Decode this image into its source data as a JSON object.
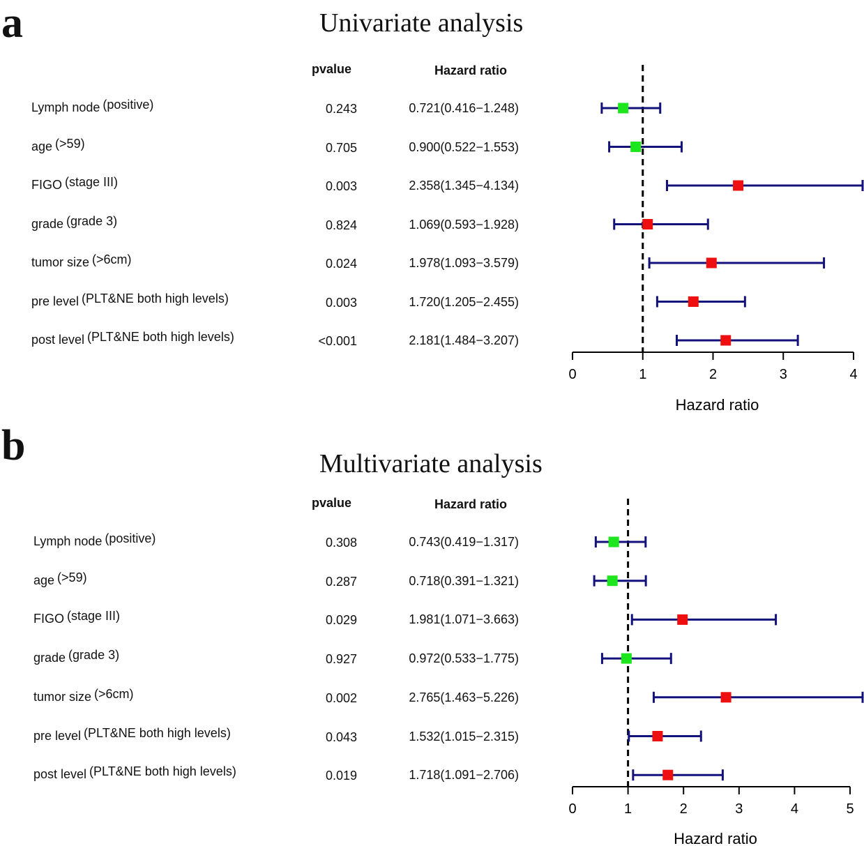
{
  "panels": [
    {
      "letter": "a",
      "title": "Univariate analysis",
      "pvalue_header": "pvalue",
      "hr_header": "Hazard ratio",
      "rows": [
        {
          "name": "Lymph node",
          "level": "(positive)",
          "pvalue": "0.243",
          "hr_text": "0.721(0.416−1.248)"
        },
        {
          "name": "age",
          "level": "(>59)",
          "pvalue": "0.705",
          "hr_text": "0.900(0.522−1.553)"
        },
        {
          "name": "FIGO",
          "level": "(stage III)",
          "pvalue": "0.003",
          "hr_text": "2.358(1.345−4.134)"
        },
        {
          "name": "grade",
          "level": "(grade 3)",
          "pvalue": "0.824",
          "hr_text": "1.069(0.593−1.928)"
        },
        {
          "name": "tumor size",
          "level": "(>6cm)",
          "pvalue": "0.024",
          "hr_text": "1.978(1.093−3.579)"
        },
        {
          "name": "pre level",
          "level": "(PLT&NE both high levels)",
          "pvalue": "0.003",
          "hr_text": "1.720(1.205−2.455)"
        },
        {
          "name": "post level",
          "level": "(PLT&NE both high levels)",
          "pvalue": "<0.001",
          "hr_text": "2.181(1.484−3.207)"
        }
      ]
    },
    {
      "letter": "b",
      "title": "Multivariate analysis",
      "pvalue_header": "pvalue",
      "hr_header": "Hazard ratio",
      "rows": [
        {
          "name": "Lymph node",
          "level": "(positive)",
          "pvalue": "0.308",
          "hr_text": "0.743(0.419−1.317)"
        },
        {
          "name": "age",
          "level": "(>59)",
          "pvalue": "0.287",
          "hr_text": "0.718(0.391−1.321)"
        },
        {
          "name": "FIGO",
          "level": "(stage III)",
          "pvalue": "0.029",
          "hr_text": "1.981(1.071−3.663)"
        },
        {
          "name": "grade",
          "level": "(grade 3)",
          "pvalue": "0.927",
          "hr_text": "0.972(0.533−1.775)"
        },
        {
          "name": "tumor size",
          "level": "(>6cm)",
          "pvalue": "0.002",
          "hr_text": "2.765(1.463−5.226)"
        },
        {
          "name": "pre level",
          "level": "(PLT&NE both high levels)",
          "pvalue": "0.043",
          "hr_text": "1.532(1.015−2.315)"
        },
        {
          "name": "post level",
          "level": "(PLT&NE both high levels)",
          "pvalue": "0.019",
          "hr_text": "1.718(1.091−2.706)"
        }
      ]
    }
  ],
  "colors": {
    "protective": "#1ee61e",
    "risk": "#ee1010",
    "ci_line": "#12127a",
    "reference_line": "#000000"
  },
  "chart_data": [
    {
      "type": "forest",
      "title": "Univariate analysis",
      "xlabel": "Hazard ratio",
      "xlim": [
        0,
        4
      ],
      "xticks": [
        0,
        1,
        2,
        3,
        4
      ],
      "reference": 1,
      "categories": [
        "Lymph node",
        "age",
        "FIGO",
        "grade",
        "tumor size",
        "pre level",
        "post level"
      ],
      "hr": [
        0.721,
        0.9,
        2.358,
        1.069,
        1.978,
        1.72,
        2.181
      ],
      "lower": [
        0.416,
        0.522,
        1.345,
        0.593,
        1.093,
        1.205,
        1.484
      ],
      "upper": [
        1.248,
        1.553,
        4.134,
        1.928,
        3.579,
        2.455,
        3.207
      ]
    },
    {
      "type": "forest",
      "title": "Multivariate analysis",
      "xlabel": "Hazard ratio",
      "xlim": [
        0,
        5
      ],
      "xticks": [
        0,
        1,
        2,
        3,
        4,
        5
      ],
      "reference": 1,
      "categories": [
        "Lymph node",
        "age",
        "FIGO",
        "grade",
        "tumor size",
        "pre level",
        "post level"
      ],
      "hr": [
        0.743,
        0.718,
        1.981,
        0.972,
        2.765,
        1.532,
        1.718
      ],
      "lower": [
        0.419,
        0.391,
        1.071,
        0.533,
        1.463,
        1.015,
        1.091
      ],
      "upper": [
        1.317,
        1.321,
        3.663,
        1.775,
        5.226,
        2.315,
        2.706
      ]
    }
  ]
}
